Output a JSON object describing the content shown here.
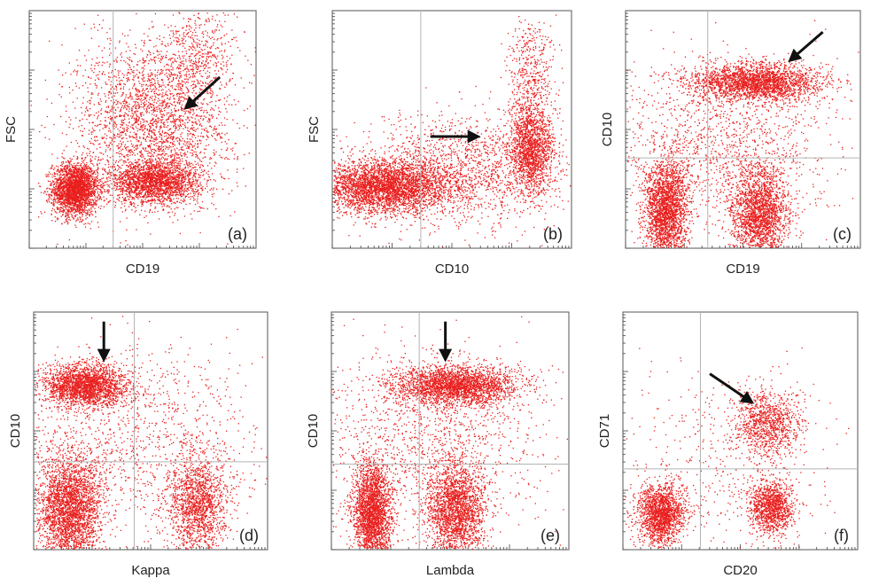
{
  "figure": {
    "dot_color": "#e8201e",
    "gate_line_color": "#b3b3b3",
    "arrow_color": "#111111"
  },
  "chart_data": [
    {
      "type": "scatter",
      "panel_label": "(a)",
      "xlabel": "CD19",
      "ylabel": "FSC",
      "xlim": [
        0,
        1
      ],
      "ylim": [
        0,
        1
      ],
      "x_scale": "log",
      "grid": false,
      "quadrant_lines": {
        "x": 0.37,
        "y": null
      },
      "populations": [
        {
          "cx": 0.2,
          "cy": 0.25,
          "sx": 0.05,
          "sy": 0.055,
          "n": 2600,
          "name": ""
        },
        {
          "cx": 0.55,
          "cy": 0.28,
          "sx": 0.1,
          "sy": 0.045,
          "n": 2200,
          "name": ""
        },
        {
          "cx": 0.55,
          "cy": 0.55,
          "sx": 0.17,
          "sy": 0.17,
          "n": 2600,
          "name": ""
        },
        {
          "cx": 0.75,
          "cy": 0.82,
          "sx": 0.08,
          "sy": 0.12,
          "n": 450,
          "name": ""
        }
      ],
      "arrow": {
        "from": [
          0.84,
          0.72
        ],
        "to": [
          0.69,
          0.59
        ]
      }
    },
    {
      "type": "scatter",
      "panel_label": "(b)",
      "xlabel": "CD10",
      "ylabel": "FSC",
      "xlim": [
        0,
        1
      ],
      "ylim": [
        0,
        1
      ],
      "x_scale": "log",
      "grid": false,
      "quadrant_lines": {
        "x": 0.37,
        "y": null
      },
      "populations": [
        {
          "cx": 0.22,
          "cy": 0.26,
          "sx": 0.14,
          "sy": 0.055,
          "n": 3600,
          "name": ""
        },
        {
          "cx": 0.55,
          "cy": 0.33,
          "sx": 0.22,
          "sy": 0.12,
          "n": 1600,
          "name": ""
        },
        {
          "cx": 0.83,
          "cy": 0.42,
          "sx": 0.045,
          "sy": 0.09,
          "n": 1500,
          "name": ""
        },
        {
          "cx": 0.83,
          "cy": 0.72,
          "sx": 0.05,
          "sy": 0.13,
          "n": 500,
          "name": ""
        }
      ],
      "arrow": {
        "from": [
          0.41,
          0.47
        ],
        "to": [
          0.61,
          0.47
        ]
      }
    },
    {
      "type": "scatter",
      "panel_label": "(c)",
      "xlabel": "CD19",
      "ylabel": "CD10",
      "xlim": [
        0,
        1
      ],
      "ylim": [
        0,
        1
      ],
      "x_scale": "log",
      "y_scale": "log",
      "grid": false,
      "quadrant_lines": {
        "x": 0.35,
        "y": 0.38
      },
      "populations": [
        {
          "cx": 0.55,
          "cy": 0.7,
          "sx": 0.14,
          "sy": 0.04,
          "n": 2500,
          "name": ""
        },
        {
          "cx": 0.17,
          "cy": 0.15,
          "sx": 0.045,
          "sy": 0.11,
          "n": 2400,
          "name": ""
        },
        {
          "cx": 0.57,
          "cy": 0.15,
          "sx": 0.06,
          "sy": 0.1,
          "n": 2100,
          "name": ""
        },
        {
          "cx": 0.4,
          "cy": 0.42,
          "sx": 0.25,
          "sy": 0.18,
          "n": 1400,
          "name": ""
        }
      ],
      "arrow": {
        "from": [
          0.84,
          0.91
        ],
        "to": [
          0.7,
          0.79
        ]
      }
    },
    {
      "type": "scatter",
      "panel_label": "(d)",
      "xlabel": "Kappa",
      "ylabel": "CD10",
      "xlim": [
        0,
        1
      ],
      "ylim": [
        0,
        1
      ],
      "x_scale": "log",
      "y_scale": "log",
      "grid": false,
      "quadrant_lines": {
        "x": 0.43,
        "y": 0.37
      },
      "populations": [
        {
          "cx": 0.22,
          "cy": 0.69,
          "sx": 0.09,
          "sy": 0.045,
          "n": 2300,
          "name": ""
        },
        {
          "cx": 0.15,
          "cy": 0.17,
          "sx": 0.07,
          "sy": 0.12,
          "n": 3000,
          "name": ""
        },
        {
          "cx": 0.7,
          "cy": 0.19,
          "sx": 0.06,
          "sy": 0.1,
          "n": 1500,
          "name": ""
        },
        {
          "cx": 0.45,
          "cy": 0.45,
          "sx": 0.28,
          "sy": 0.2,
          "n": 1300,
          "name": ""
        }
      ],
      "arrow": {
        "from": [
          0.3,
          0.96
        ],
        "to": [
          0.3,
          0.8
        ]
      }
    },
    {
      "type": "scatter",
      "panel_label": "(e)",
      "xlabel": "Lambda",
      "ylabel": "CD10",
      "xlim": [
        0,
        1
      ],
      "ylim": [
        0,
        1
      ],
      "x_scale": "log",
      "y_scale": "log",
      "grid": false,
      "quadrant_lines": {
        "x": 0.37,
        "y": 0.36
      },
      "populations": [
        {
          "cx": 0.52,
          "cy": 0.69,
          "sx": 0.13,
          "sy": 0.04,
          "n": 2600,
          "name": ""
        },
        {
          "cx": 0.17,
          "cy": 0.15,
          "sx": 0.04,
          "sy": 0.11,
          "n": 2500,
          "name": ""
        },
        {
          "cx": 0.52,
          "cy": 0.17,
          "sx": 0.06,
          "sy": 0.1,
          "n": 2200,
          "name": ""
        },
        {
          "cx": 0.4,
          "cy": 0.45,
          "sx": 0.25,
          "sy": 0.2,
          "n": 1400,
          "name": ""
        }
      ],
      "arrow": {
        "from": [
          0.48,
          0.96
        ],
        "to": [
          0.48,
          0.8
        ]
      }
    },
    {
      "type": "scatter",
      "panel_label": "(f)",
      "xlabel": "CD20",
      "ylabel": "CD71",
      "xlim": [
        0,
        1
      ],
      "ylim": [
        0,
        1
      ],
      "x_scale": "log",
      "y_scale": "log",
      "grid": false,
      "quadrant_lines": {
        "x": 0.33,
        "y": 0.34
      },
      "populations": [
        {
          "cx": 0.61,
          "cy": 0.53,
          "sx": 0.07,
          "sy": 0.07,
          "n": 1000,
          "name": ""
        },
        {
          "cx": 0.16,
          "cy": 0.15,
          "sx": 0.05,
          "sy": 0.06,
          "n": 1700,
          "name": ""
        },
        {
          "cx": 0.63,
          "cy": 0.18,
          "sx": 0.045,
          "sy": 0.055,
          "n": 1200,
          "name": ""
        },
        {
          "cx": 0.42,
          "cy": 0.35,
          "sx": 0.24,
          "sy": 0.2,
          "n": 500,
          "name": ""
        }
      ],
      "arrow": {
        "from": [
          0.37,
          0.74
        ],
        "to": [
          0.55,
          0.62
        ]
      }
    }
  ]
}
